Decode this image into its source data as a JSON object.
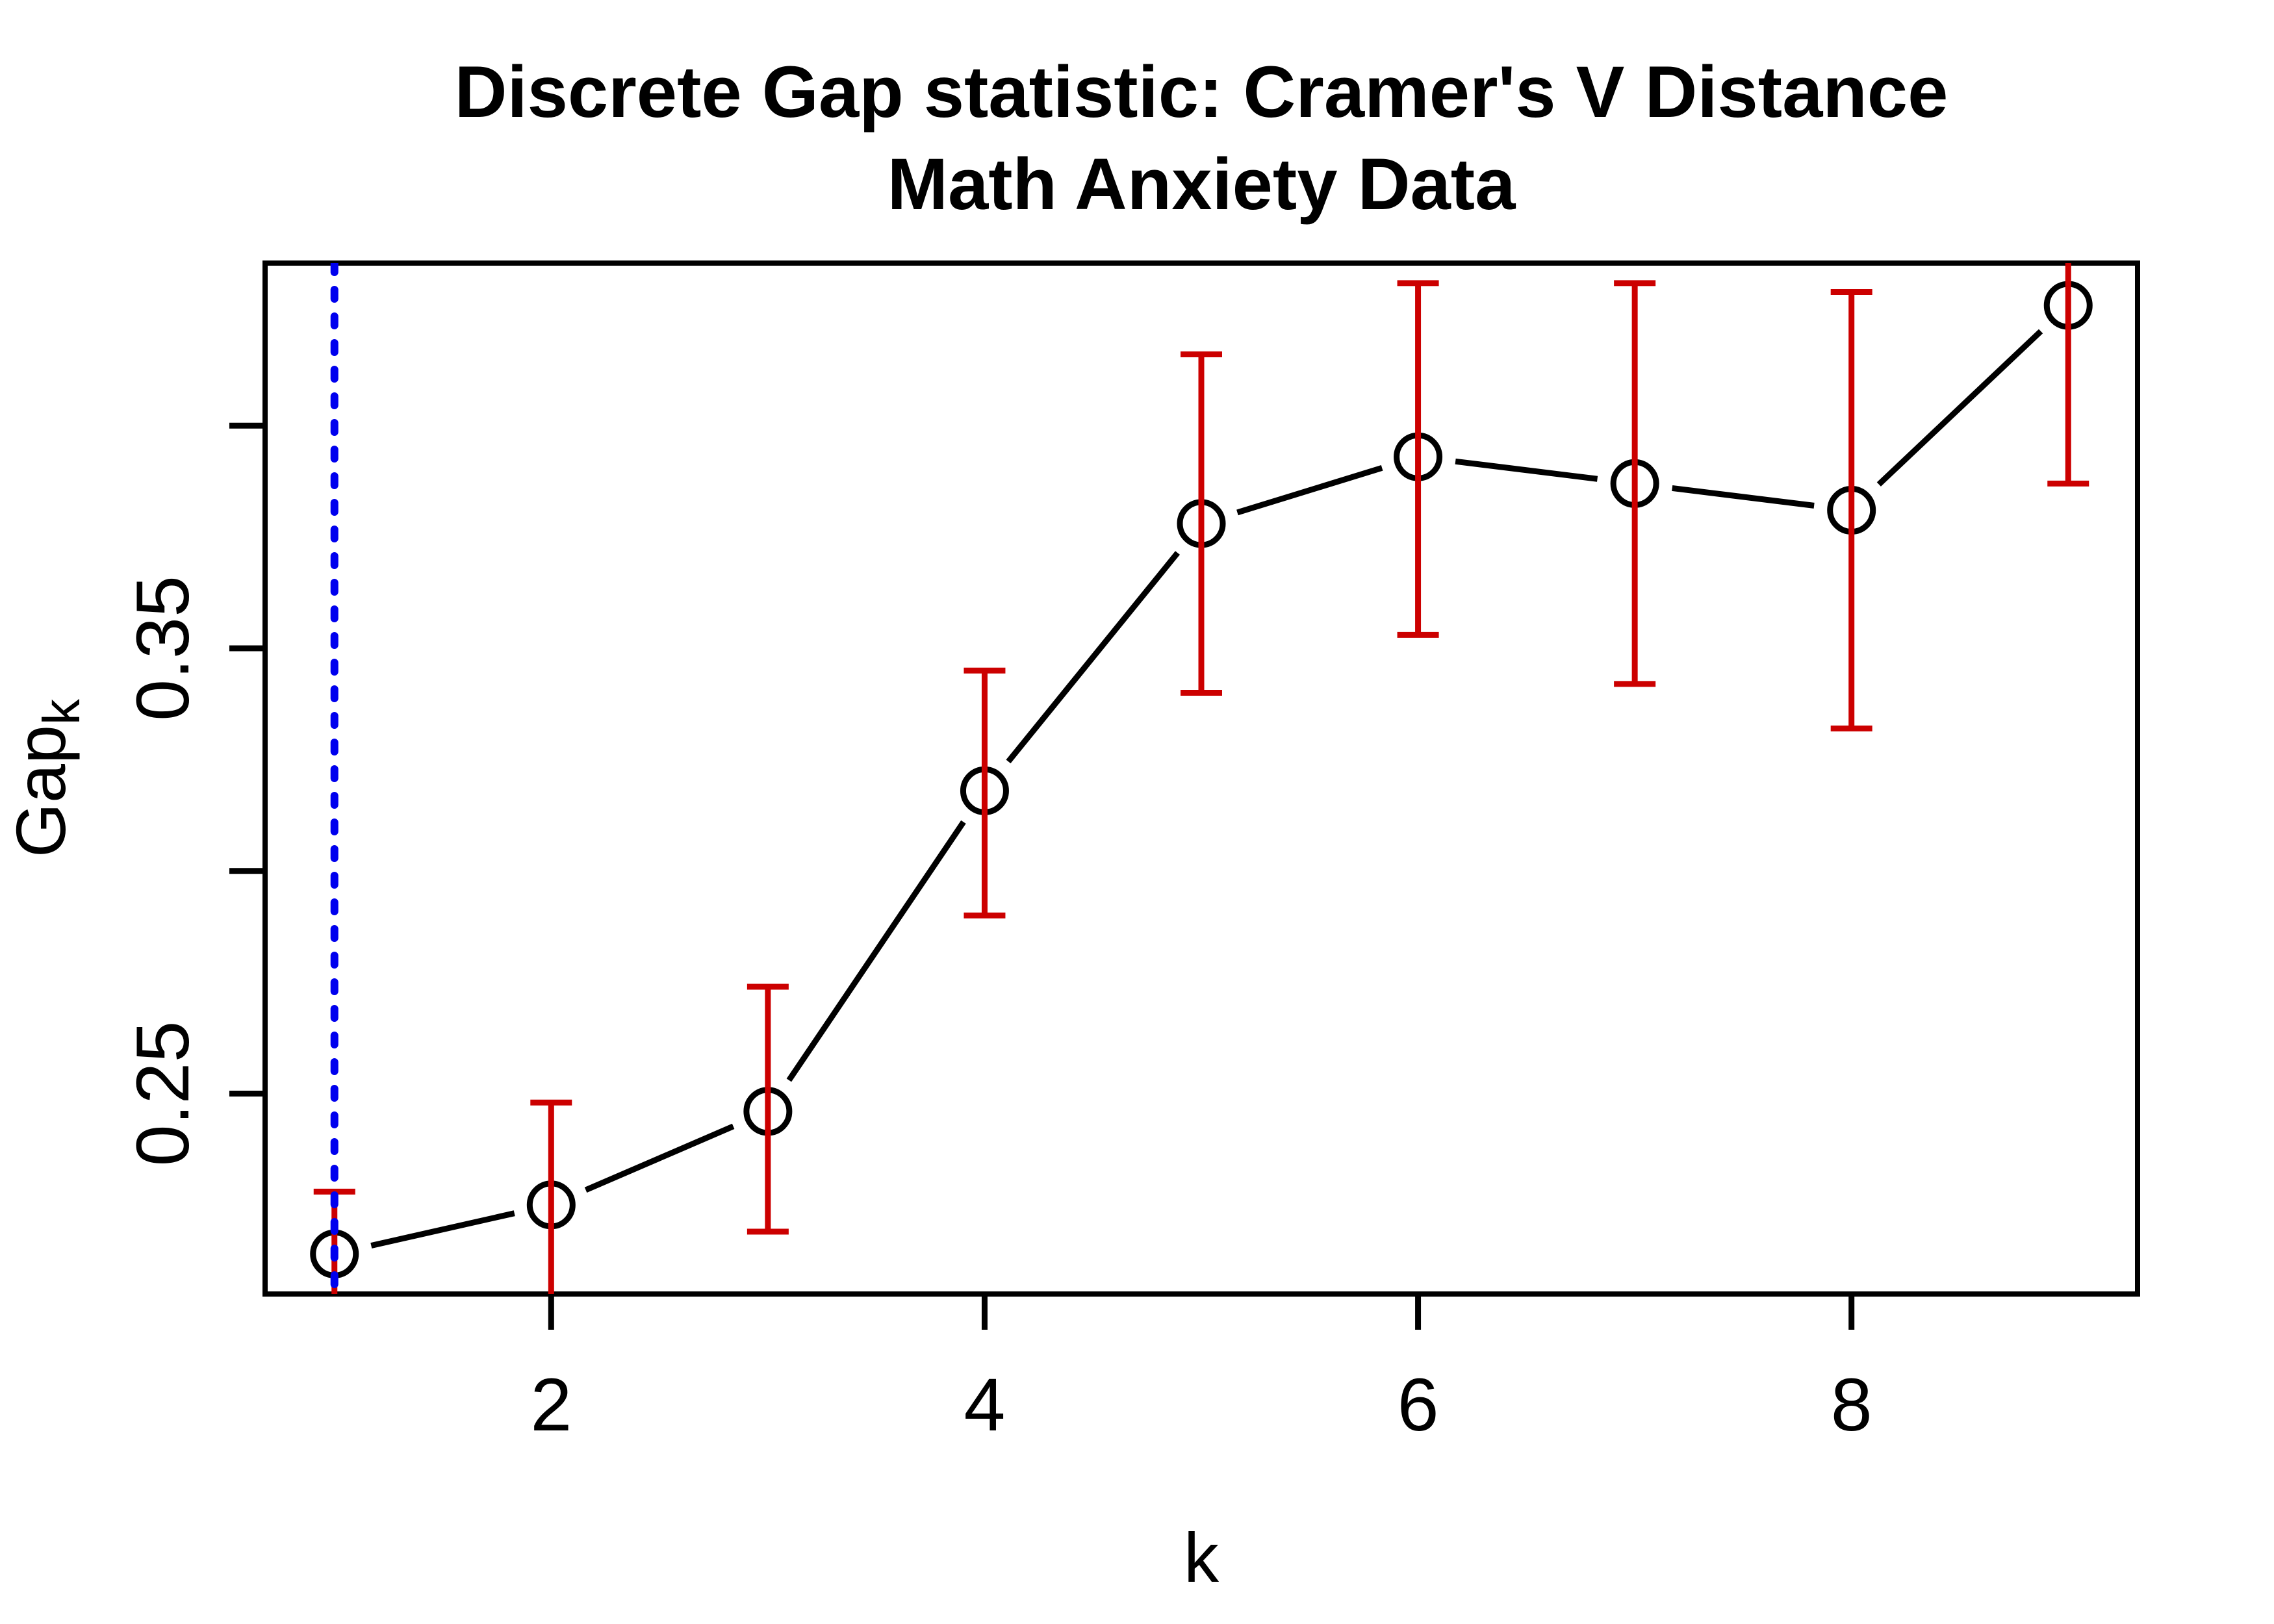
{
  "chart_data": {
    "type": "line",
    "title": "Discrete Gap statistic: Cramer's V Distance",
    "subtitle": "Math Anxiety Data",
    "xlabel": "k",
    "ylabel_main": "Gap",
    "ylabel_sub": "k",
    "grid": false,
    "legend": null,
    "xlim": [
      0.68,
      9.32
    ],
    "ylim": [
      0.205,
      0.4365
    ],
    "x_ticks": [
      {
        "value": 2,
        "label": "2"
      },
      {
        "value": 4,
        "label": "4"
      },
      {
        "value": 6,
        "label": "6"
      },
      {
        "value": 8,
        "label": "8"
      }
    ],
    "y_ticks": [
      {
        "value": 0.25,
        "label": "0.25"
      },
      {
        "value": 0.3,
        "label": ""
      },
      {
        "value": 0.35,
        "label": "0.35"
      },
      {
        "value": 0.4,
        "label": ""
      }
    ],
    "points": [
      {
        "k": 1,
        "gap": 0.214,
        "lower": 0.199,
        "upper": 0.228
      },
      {
        "k": 2,
        "gap": 0.225,
        "lower": 0.201,
        "upper": 0.248
      },
      {
        "k": 3,
        "gap": 0.246,
        "lower": 0.219,
        "upper": 0.274
      },
      {
        "k": 4,
        "gap": 0.318,
        "lower": 0.29,
        "upper": 0.345
      },
      {
        "k": 5,
        "gap": 0.378,
        "lower": 0.34,
        "upper": 0.416
      },
      {
        "k": 6,
        "gap": 0.393,
        "lower": 0.353,
        "upper": 0.432
      },
      {
        "k": 7,
        "gap": 0.387,
        "lower": 0.342,
        "upper": 0.432
      },
      {
        "k": 8,
        "gap": 0.381,
        "lower": 0.332,
        "upper": 0.43
      },
      {
        "k": 9,
        "gap": 0.427,
        "lower": 0.387,
        "upper": 0.468
      }
    ],
    "vline_x": 1,
    "colors": {
      "line": "#000000",
      "point": "#000000",
      "errorbar": "#CC0000",
      "vline": "#0000EE",
      "axis": "#000000"
    }
  }
}
